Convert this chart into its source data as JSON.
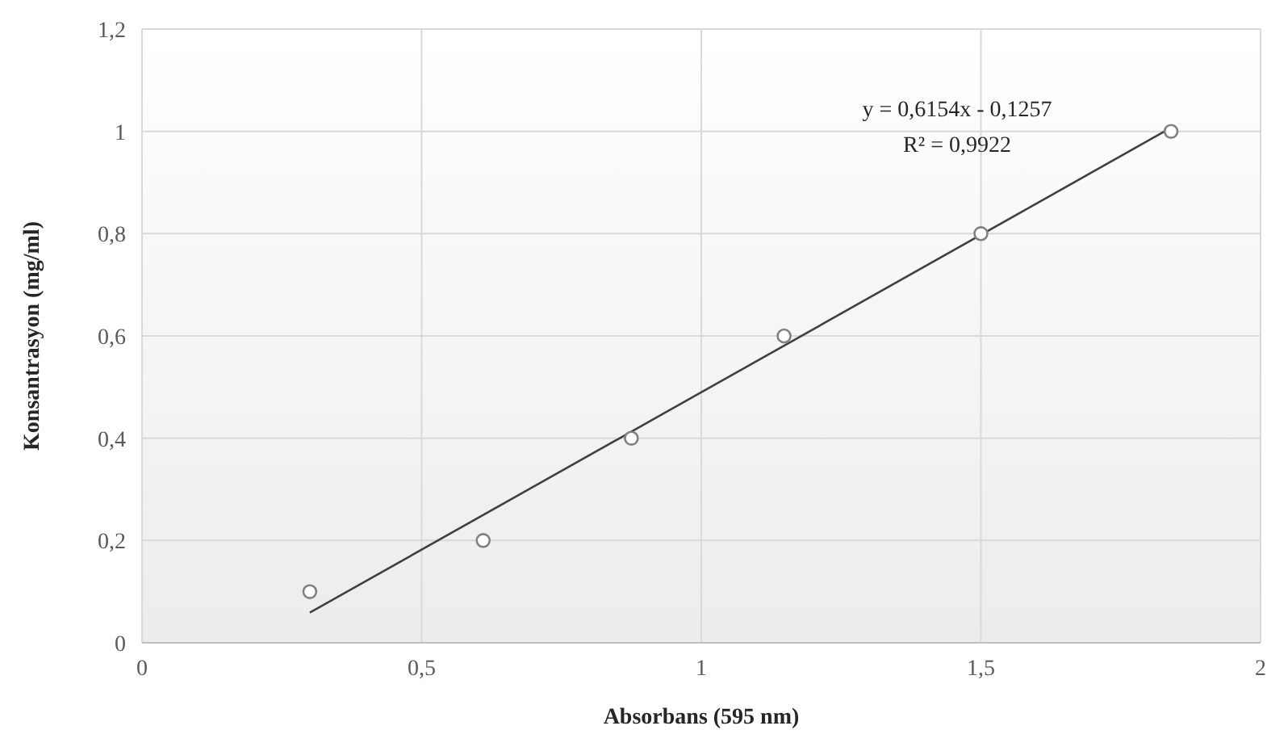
{
  "chart_data": {
    "type": "scatter",
    "xlabel": "Absorbans (595 nm)",
    "ylabel": "Konsantrasyon (mg/ml)",
    "xlim": [
      0,
      2
    ],
    "ylim": [
      0,
      1.2
    ],
    "xticks": [
      0,
      {
        "value": 0.5,
        "label": "0,5"
      },
      1,
      {
        "value": 1.5,
        "label": "1,5"
      },
      2
    ],
    "yticks": [
      0,
      {
        "value": 0.2,
        "label": "0,2"
      },
      {
        "value": 0.4,
        "label": "0,4"
      },
      {
        "value": 0.6,
        "label": "0,6"
      },
      {
        "value": 0.8,
        "label": "0,8"
      },
      1,
      {
        "value": 1.2,
        "label": "1,2"
      }
    ],
    "grid": true,
    "series": [
      {
        "marker": "circle",
        "color": "#808080",
        "x": [
          0.3,
          0.61,
          0.875,
          1.148,
          1.5,
          1.84
        ],
        "values": [
          0.1,
          0.2,
          0.4,
          0.6,
          0.8,
          1.0
        ]
      },
      {
        "type": "line",
        "color": "#404040",
        "line_style": "solid",
        "x": [
          0.3,
          1.84
        ],
        "values": [
          0.059,
          1.007
        ]
      }
    ],
    "annotations": [
      "y = 0,6154x - 0,1257",
      "R² = 0,9922"
    ]
  }
}
